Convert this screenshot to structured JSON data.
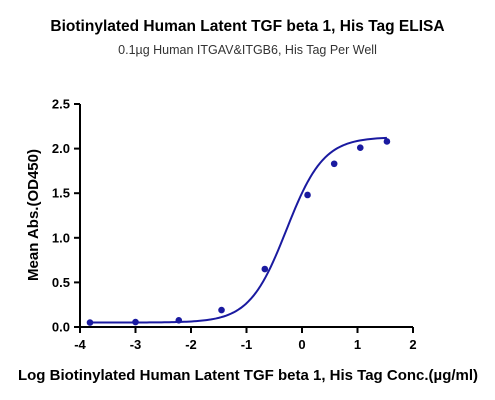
{
  "chart_data": {
    "type": "scatter",
    "title": "Biotinylated Human Latent TGF beta 1, His Tag ELISA",
    "subtitle": "0.1µg Human ITGAV&ITGB6, His Tag Per Well",
    "xlabel": "Log Biotinylated Human Latent TGF beta 1, His Tag Conc.(µg/ml)",
    "ylabel": "Mean Abs.(OD450)",
    "xlim": [
      -4,
      2
    ],
    "ylim": [
      0,
      2.5
    ],
    "xticks": [
      -4,
      -3,
      -2,
      -1,
      0,
      1,
      2
    ],
    "yticks": [
      0.0,
      0.5,
      1.0,
      1.5,
      2.0,
      2.5
    ],
    "xtick_labels": [
      "-4",
      "-3",
      "-2",
      "-1",
      "0",
      "1",
      "2"
    ],
    "ytick_labels": [
      "0.0",
      "0.5",
      "1.0",
      "1.5",
      "2.0",
      "2.5"
    ],
    "grid": false,
    "color": "#1a1aa0",
    "series": [
      {
        "points": [
          {
            "x": -3.82,
            "y": 0.05
          },
          {
            "x": -3.0,
            "y": 0.055
          },
          {
            "x": -2.22,
            "y": 0.075
          },
          {
            "x": -1.45,
            "y": 0.19
          },
          {
            "x": -0.67,
            "y": 0.65
          },
          {
            "x": 0.1,
            "y": 1.48
          },
          {
            "x": 0.58,
            "y": 1.83
          },
          {
            "x": 1.05,
            "y": 2.01
          },
          {
            "x": 1.53,
            "y": 2.08
          }
        ],
        "fit": {
          "bottom": 0.05,
          "top": 2.13,
          "logEC50": -0.28,
          "hill": 1.3
        }
      }
    ]
  }
}
